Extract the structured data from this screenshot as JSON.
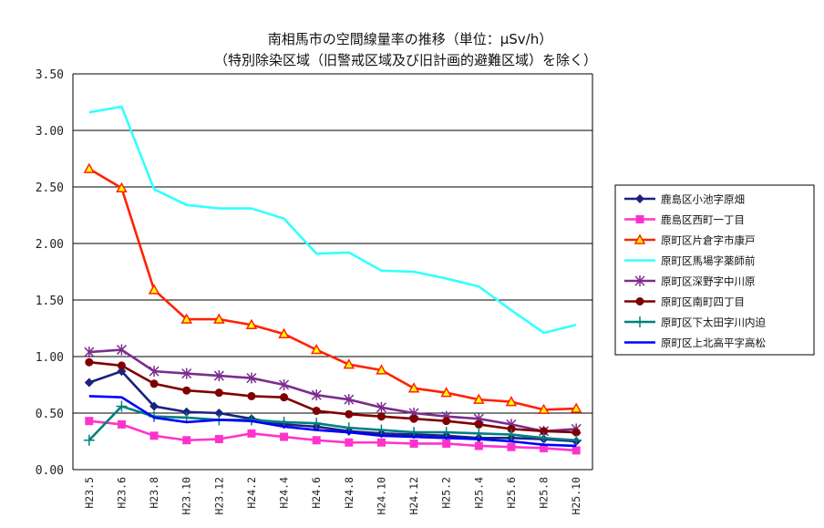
{
  "chart_data": {
    "type": "line",
    "title": "南相馬市の空間線量率の推移（単位：μSv/h）",
    "subtitle": "（特別除染区域（旧警戒区域及び旧計画的避難区域）を除く）",
    "xlabel": "",
    "ylabel": "",
    "ylim": [
      0,
      3.5
    ],
    "yticks": [
      "0.00",
      "0.50",
      "1.00",
      "1.50",
      "2.00",
      "2.50",
      "3.00",
      "3.50"
    ],
    "categories": [
      "H23.5",
      "H23.6",
      "H23.8",
      "H23.10",
      "H23.12",
      "H24.2",
      "H24.4",
      "H24.6",
      "H24.8",
      "H24.10",
      "H24.12",
      "H25.2",
      "H25.4",
      "H25.6",
      "H25.8",
      "H25.10"
    ],
    "grid": "horizontal",
    "legend_position": "right",
    "series": [
      {
        "name": "鹿島区小池字原畑",
        "color": "#1a237e",
        "marker": "diamond",
        "values": [
          0.77,
          0.87,
          0.56,
          0.51,
          0.5,
          0.45,
          0.4,
          0.38,
          0.34,
          0.32,
          0.31,
          0.3,
          0.28,
          0.28,
          0.27,
          0.25
        ]
      },
      {
        "name": "鹿島区西町一丁目",
        "color": "#ff33cc",
        "marker": "square",
        "values": [
          0.43,
          0.4,
          0.3,
          0.26,
          0.27,
          0.32,
          0.29,
          0.26,
          0.24,
          0.24,
          0.23,
          0.23,
          0.21,
          0.2,
          0.19,
          0.17
        ]
      },
      {
        "name": "原町区片倉字市康戸",
        "color": "#ff2200",
        "marker": "triangle",
        "values": [
          2.66,
          2.49,
          1.59,
          1.33,
          1.33,
          1.28,
          1.2,
          1.06,
          0.93,
          0.88,
          0.72,
          0.68,
          0.62,
          0.6,
          0.53,
          0.54
        ]
      },
      {
        "name": "原町区馬場字薬師前",
        "color": "#33ffff",
        "marker": "none",
        "values": [
          3.16,
          3.21,
          2.48,
          2.34,
          2.31,
          2.31,
          2.22,
          1.91,
          1.92,
          1.76,
          1.75,
          1.69,
          1.62,
          1.41,
          1.21,
          1.28
        ]
      },
      {
        "name": "原町区深野字中川原",
        "color": "#7b2d8e",
        "marker": "star",
        "values": [
          1.04,
          1.06,
          0.87,
          0.85,
          0.83,
          0.81,
          0.75,
          0.66,
          0.62,
          0.55,
          0.5,
          0.47,
          0.45,
          0.4,
          0.34,
          0.36
        ]
      },
      {
        "name": "原町区南町四丁目",
        "color": "#800000",
        "marker": "circle",
        "values": [
          0.95,
          0.92,
          0.76,
          0.7,
          0.68,
          0.65,
          0.64,
          0.52,
          0.49,
          0.47,
          0.45,
          0.43,
          0.4,
          0.36,
          0.34,
          0.33
        ]
      },
      {
        "name": "原町区下太田字川内迫",
        "color": "#008080",
        "marker": "plus",
        "values": [
          0.26,
          0.56,
          0.47,
          0.46,
          0.44,
          0.44,
          0.42,
          0.41,
          0.37,
          0.35,
          0.33,
          0.33,
          0.32,
          0.31,
          0.28,
          0.26
        ]
      },
      {
        "name": "原町区上北高平字高松",
        "color": "#0000ff",
        "marker": "none",
        "values": [
          0.65,
          0.64,
          0.46,
          0.42,
          0.44,
          0.43,
          0.38,
          0.35,
          0.33,
          0.3,
          0.29,
          0.28,
          0.27,
          0.25,
          0.22,
          0.21
        ]
      }
    ]
  }
}
